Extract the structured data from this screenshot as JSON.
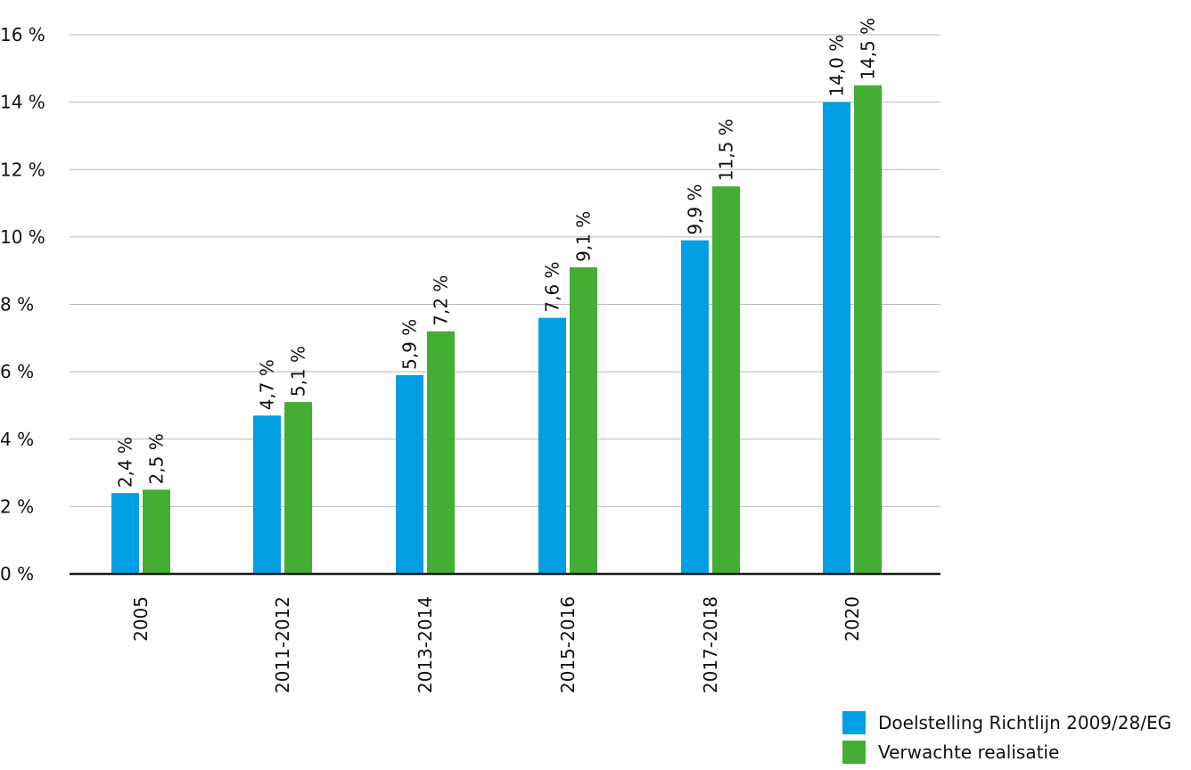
{
  "chart_data": {
    "type": "bar",
    "title": "",
    "xlabel": "",
    "ylabel": "",
    "ylim": [
      0,
      16
    ],
    "y_ticks": [
      0,
      2,
      4,
      6,
      8,
      10,
      12,
      14,
      16
    ],
    "y_tick_labels": [
      "0 %",
      "2 %",
      "4 %",
      "6 %",
      "8 %",
      "10 %",
      "12 %",
      "14 %",
      "16 %"
    ],
    "grid": true,
    "legend_position": "bottom-right",
    "categories": [
      "2005",
      "2011-2012",
      "2013-2014",
      "2015-2016",
      "2017-2018",
      "2020"
    ],
    "series": [
      {
        "name": "Doelstelling Richtlijn 2009/28/EG",
        "color": "#009fe3",
        "values": [
          2.4,
          4.7,
          5.9,
          7.6,
          9.9,
          14.0
        ],
        "labels": [
          "2,4 %",
          "4,7 %",
          "5,9 %",
          "7,6 %",
          "9,9 %",
          "14,0 %"
        ]
      },
      {
        "name": "Verwachte realisatie",
        "color": "#43ad34",
        "values": [
          2.5,
          5.1,
          7.2,
          9.1,
          11.5,
          14.5
        ],
        "labels": [
          "2,5 %",
          "5,1 %",
          "7,2 %",
          "9,1 %",
          "11,5 %",
          "14,5 %"
        ]
      }
    ]
  }
}
